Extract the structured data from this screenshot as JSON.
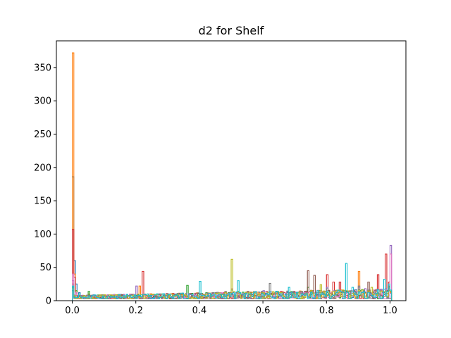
{
  "chart_data": {
    "type": "histogram",
    "histtype": "step",
    "title": "d2 for Shelf",
    "xlabel": "",
    "ylabel": "",
    "xlim": [
      -0.05,
      1.05
    ],
    "ylim": [
      0,
      390
    ],
    "xticks": [
      0.0,
      0.2,
      0.4,
      0.6,
      0.8,
      1.0
    ],
    "xtick_labels": [
      "0.0",
      "0.2",
      "0.4",
      "0.6",
      "0.8",
      "1.0"
    ],
    "yticks": [
      0,
      50,
      100,
      150,
      200,
      250,
      300,
      350
    ],
    "ytick_labels": [
      "0",
      "50",
      "100",
      "150",
      "200",
      "250",
      "300",
      "350"
    ],
    "grid": false,
    "legend": false,
    "series": [
      {
        "color": "#1f77b4",
        "points": [
          [
            0.0,
            186
          ],
          [
            0.003,
            60
          ],
          [
            0.01,
            25
          ],
          [
            0.02,
            12
          ],
          [
            0.05,
            8
          ],
          [
            0.15,
            6
          ],
          [
            0.3,
            7
          ],
          [
            0.5,
            10
          ],
          [
            0.7,
            12
          ],
          [
            0.9,
            14
          ],
          [
            0.995,
            18
          ]
        ]
      },
      {
        "color": "#ff7f0e",
        "points": [
          [
            0.0,
            372
          ],
          [
            0.003,
            40
          ],
          [
            0.01,
            15
          ],
          [
            0.05,
            10
          ],
          [
            0.21,
            22
          ],
          [
            0.5,
            12
          ],
          [
            0.7,
            10
          ],
          [
            0.9,
            44
          ],
          [
            0.995,
            22
          ]
        ]
      },
      {
        "color": "#2ca02c",
        "points": [
          [
            0.0,
            20
          ],
          [
            0.01,
            15
          ],
          [
            0.05,
            14
          ],
          [
            0.2,
            8
          ],
          [
            0.36,
            23
          ],
          [
            0.5,
            16
          ],
          [
            0.74,
            20
          ],
          [
            0.85,
            15
          ],
          [
            0.995,
            20
          ]
        ]
      },
      {
        "color": "#d62728",
        "points": [
          [
            0.0,
            107
          ],
          [
            0.003,
            35
          ],
          [
            0.01,
            12
          ],
          [
            0.22,
            44
          ],
          [
            0.4,
            10
          ],
          [
            0.6,
            12
          ],
          [
            0.8,
            39
          ],
          [
            0.82,
            28
          ],
          [
            0.84,
            28
          ],
          [
            0.96,
            39
          ],
          [
            0.985,
            70
          ],
          [
            0.995,
            28
          ]
        ]
      },
      {
        "color": "#9467bd",
        "points": [
          [
            0.0,
            30
          ],
          [
            0.01,
            10
          ],
          [
            0.2,
            22
          ],
          [
            0.45,
            12
          ],
          [
            0.6,
            15
          ],
          [
            0.8,
            20
          ],
          [
            0.92,
            18
          ],
          [
            0.999,
            83
          ]
        ]
      },
      {
        "color": "#8c564b",
        "points": [
          [
            0.0,
            25
          ],
          [
            0.02,
            8
          ],
          [
            0.3,
            10
          ],
          [
            0.55,
            14
          ],
          [
            0.74,
            45
          ],
          [
            0.76,
            38
          ],
          [
            0.93,
            28
          ],
          [
            0.995,
            22
          ]
        ]
      },
      {
        "color": "#e377c2",
        "points": [
          [
            0.0,
            40
          ],
          [
            0.01,
            12
          ],
          [
            0.25,
            8
          ],
          [
            0.5,
            18
          ],
          [
            0.7,
            12
          ],
          [
            0.9,
            20
          ],
          [
            0.999,
            70
          ]
        ]
      },
      {
        "color": "#7f7f7f",
        "points": [
          [
            0.0,
            15
          ],
          [
            0.03,
            6
          ],
          [
            0.3,
            8
          ],
          [
            0.48,
            14
          ],
          [
            0.62,
            26
          ],
          [
            0.8,
            18
          ],
          [
            0.9,
            22
          ],
          [
            0.995,
            15
          ]
        ]
      },
      {
        "color": "#bcbd22",
        "points": [
          [
            0.0,
            18
          ],
          [
            0.02,
            7
          ],
          [
            0.35,
            9
          ],
          [
            0.5,
            62
          ],
          [
            0.52,
            14
          ],
          [
            0.78,
            24
          ],
          [
            0.94,
            20
          ],
          [
            0.995,
            16
          ]
        ]
      },
      {
        "color": "#17becf",
        "points": [
          [
            0.0,
            22
          ],
          [
            0.02,
            10
          ],
          [
            0.4,
            29
          ],
          [
            0.52,
            30
          ],
          [
            0.68,
            20
          ],
          [
            0.86,
            56
          ],
          [
            0.88,
            20
          ],
          [
            0.98,
            32
          ],
          [
            0.995,
            25
          ]
        ]
      }
    ]
  }
}
